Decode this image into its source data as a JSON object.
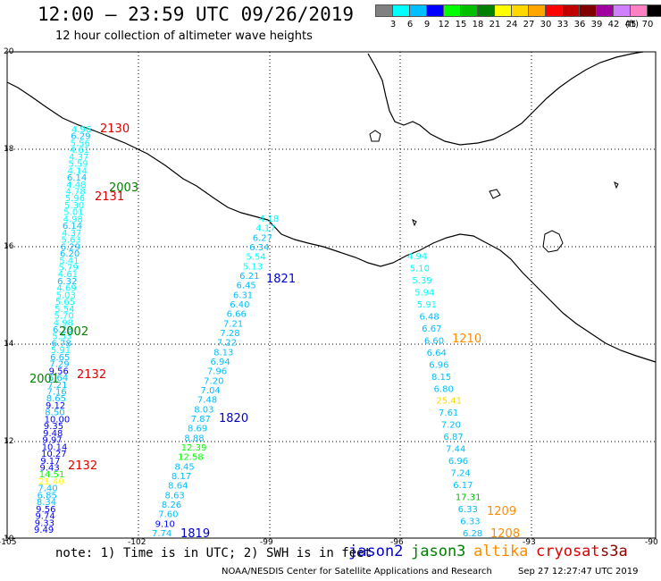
{
  "header": {
    "title": "12:00 – 23:59 UTC 09/26/2019",
    "subtitle": "12 hour collection of altimeter wave heights"
  },
  "legend": {
    "unit": "(ft)",
    "bins": [
      {
        "label": "3",
        "color": "#808080"
      },
      {
        "label": "6",
        "color": "#00ffff"
      },
      {
        "label": "9",
        "color": "#00bfff"
      },
      {
        "label": "12",
        "color": "#0000ff"
      },
      {
        "label": "15",
        "color": "#00ff00"
      },
      {
        "label": "18",
        "color": "#00c000"
      },
      {
        "label": "21",
        "color": "#008000"
      },
      {
        "label": "24",
        "color": "#ffff00"
      },
      {
        "label": "27",
        "color": "#ffd700"
      },
      {
        "label": "30",
        "color": "#ffa500"
      },
      {
        "label": "33",
        "color": "#ff0000"
      },
      {
        "label": "36",
        "color": "#c00000"
      },
      {
        "label": "39",
        "color": "#800000"
      },
      {
        "label": "42",
        "color": "#a000a0"
      },
      {
        "label": "45",
        "color": "#d080ff"
      },
      {
        "label": "70",
        "color": "#ff80c0"
      },
      {
        "label": "",
        "color": "#000000"
      }
    ]
  },
  "axes": {
    "lon_ticks": [
      "-105",
      "-102",
      "-99",
      "-96",
      "-93",
      "-90"
    ],
    "lat_ticks": [
      "20",
      "18",
      "16",
      "14",
      "12",
      "10"
    ]
  },
  "tracks": [
    {
      "id": "A",
      "color_key": "cryo",
      "labels": [
        "2130",
        "2131",
        "2132",
        "2132"
      ],
      "values": [
        "4.96",
        "6.29",
        "5.56",
        "4.61",
        "4.37",
        "5.59",
        "4.14",
        "6.14",
        "4.48",
        "4.78",
        "5.96",
        "5.30",
        "5.01",
        "4.98",
        "6.14",
        "4.37",
        "5.63",
        "6.29",
        "6.20",
        "5.41",
        "5.79",
        "4.61",
        "6.32",
        "4.69",
        "5.03",
        "5.65",
        "5.54",
        "5.70",
        "4.98",
        "6.28",
        "5.53",
        "6.78",
        "5.91",
        "6.65",
        "7.29",
        "9.56",
        "6.64",
        "7.21",
        "7.16",
        "8.65",
        "9.12",
        "8.50",
        "10.00",
        "9.35",
        "9.48",
        "9.97",
        "10.14",
        "10.27",
        "9.17",
        "9.43",
        "14.51",
        "21.40",
        "7.40",
        "6.85",
        "8.34",
        "9.56",
        "9.74",
        "9.33",
        "9.49"
      ]
    },
    {
      "id": "B",
      "color_key": "j2",
      "labels": [
        "1821",
        "1820",
        "1819"
      ],
      "values": [
        "4.18",
        "4.17",
        "6.27",
        "6.34",
        "5.54",
        "5.13",
        "6.21",
        "6.45",
        "6.31",
        "6.40",
        "6.66",
        "7.21",
        "7.28",
        "7.22",
        "8.13",
        "6.94",
        "7.96",
        "7.20",
        "7.04",
        "7.48",
        "8.03",
        "7.87",
        "8.69",
        "8.88",
        "12.39",
        "12.58",
        "8.45",
        "8.17",
        "8.64",
        "8.63",
        "8.26",
        "7.60",
        "9.10",
        "7.74"
      ]
    },
    {
      "id": "C",
      "color_key": "alt",
      "labels": [
        "1210",
        "1209",
        "1208"
      ],
      "values": [
        "4.94",
        "5.10",
        "5.39",
        "5.94",
        "5.91",
        "6.48",
        "6.67",
        "6.60",
        "6.64",
        "6.96",
        "8.15",
        "6.80",
        "25.41",
        "7.61",
        "7.20",
        "6.87",
        "7.44",
        "6.96",
        "7.24",
        "6.17",
        "17.31",
        "6.33",
        "6.33",
        "6.28"
      ]
    }
  ],
  "pass_labels": {
    "j3": [
      "2003",
      "2002",
      "2001"
    ]
  },
  "footer": {
    "note": "note: 1) Time is in UTC; 2) SWH is in feet",
    "sats": [
      "jason2",
      "jason3",
      "altika",
      "cryosat",
      "s3a"
    ],
    "credit": "NOAA/NESDIS Center for Satellite Applications and Research",
    "timestamp": "Sep 27 12:27:47 UTC 2019"
  },
  "colors": {
    "j2": "#0000cc",
    "j3": "#008000",
    "alt": "#ff8c00",
    "cryo": "#dd0000",
    "s3a": "#8b0000"
  }
}
